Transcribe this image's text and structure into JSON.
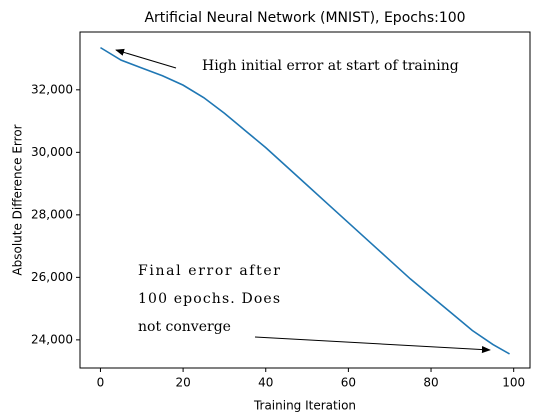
{
  "chart_data": {
    "type": "line",
    "title": "Artificial Neural Network (MNIST), Epochs:100",
    "x_label": "Training Iteration",
    "y_label": "Absolute Difference Error",
    "x": [
      0,
      5,
      10,
      15,
      20,
      25,
      30,
      35,
      40,
      45,
      50,
      55,
      60,
      65,
      70,
      75,
      80,
      85,
      90,
      95,
      99
    ],
    "series": [
      {
        "name": "error",
        "color": "#1f77b4",
        "values": [
          33350,
          32950,
          32700,
          32450,
          32150,
          31750,
          31250,
          30700,
          30150,
          29550,
          28950,
          28350,
          27750,
          27150,
          26550,
          25950,
          25400,
          24850,
          24300,
          23850,
          23550
        ]
      }
    ],
    "xlim": [
      -4.95,
      103.95
    ],
    "xticks": [
      0,
      20,
      40,
      60,
      80,
      100
    ],
    "ylim": [
      23100,
      33850
    ],
    "yticks": [
      {
        "value": 24000,
        "label": "24,000"
      },
      {
        "value": 26000,
        "label": "26,000"
      },
      {
        "value": 28000,
        "label": "28,000"
      },
      {
        "value": 30000,
        "label": "30,000"
      },
      {
        "value": 32000,
        "label": "32,000"
      }
    ],
    "annotations": [
      {
        "lines": [
          "High initial error at start of training"
        ]
      },
      {
        "lines": [
          "Final error after",
          "100 epochs. Does",
          "not converge"
        ]
      }
    ]
  }
}
